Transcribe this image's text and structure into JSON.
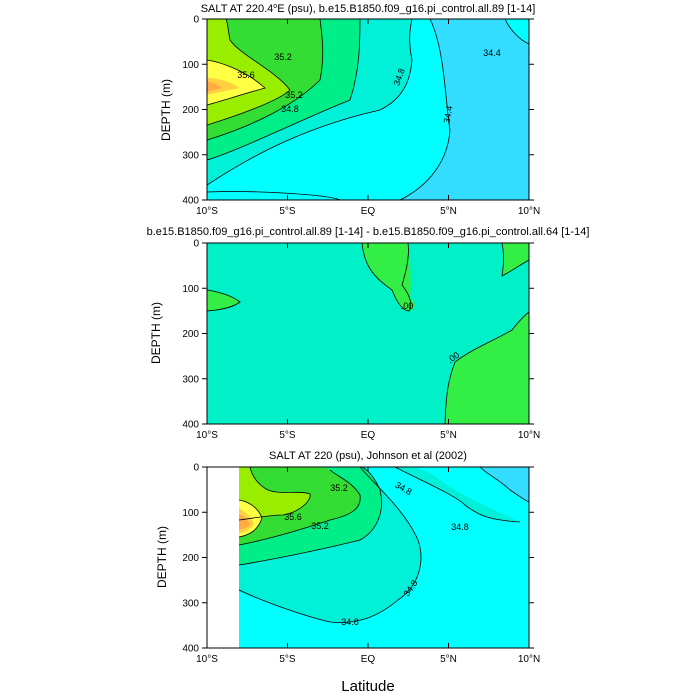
{
  "figure": {
    "xlabel": "Latitude",
    "ylabel": "DEPTH (m)"
  },
  "colors": {
    "c34_4": "#33ddff",
    "c34_6": "#00ffff",
    "c34_8": "#00f0d8",
    "c35_0": "#00ee88",
    "c35_2": "#33dd33",
    "c35_4": "#99ee00",
    "c35_6": "#ffff44",
    "c35_8": "#ffd040",
    "c36_0": "#ffaa44",
    "diff_bg": "#00f0c8",
    "diff_pos": "#33ee44",
    "line": "#000000"
  },
  "chart_data": [
    {
      "type": "contour",
      "title_main": "SALT AT 220.4",
      "title_sup": "o",
      "title_rest": "E (psu), b.e15.B1850.f09_g16.pi_control.all.89 [1-14]",
      "xlabel": "",
      "ylabel": "DEPTH (m)",
      "xlim": [
        -10,
        10
      ],
      "ylim": [
        400,
        0
      ],
      "xticks": [
        -10,
        -5,
        0,
        5,
        10
      ],
      "xtick_labels": [
        "10°S",
        "5°S",
        "EQ",
        "5°N",
        "10°N"
      ],
      "yticks": [
        0,
        100,
        200,
        300,
        400
      ],
      "ytick_labels": [
        "0",
        "100",
        "200",
        "300",
        "400"
      ],
      "contour_labels": [
        "35.2",
        "35.6",
        "35.2",
        "34.8",
        "34.8",
        "34.4",
        "34.4"
      ]
    },
    {
      "type": "contour",
      "title": "b.e15.B1850.f09_g16.pi_control.all.89 [1-14] - b.e15.B1850.f09_g16.pi_control.all.64 [1-14]",
      "xlabel": "",
      "ylabel": "DEPTH (m)",
      "xlim": [
        -10,
        10
      ],
      "ylim": [
        400,
        0
      ],
      "xticks": [
        -10,
        -5,
        0,
        5,
        10
      ],
      "xtick_labels": [
        "10°S",
        "5°S",
        "EQ",
        "5°N",
        "10°N"
      ],
      "yticks": [
        0,
        100,
        200,
        300,
        400
      ],
      "ytick_labels": [
        "0",
        "100",
        "200",
        "300",
        "400"
      ],
      "contour_labels": [
        ".00",
        ".00"
      ]
    },
    {
      "type": "contour",
      "title": "SALT AT 220 (psu), Johnson et al (2002)",
      "xlabel": "Latitude",
      "ylabel": "DEPTH (m)",
      "xlim": [
        -10,
        10
      ],
      "ylim": [
        400,
        0
      ],
      "xticks": [
        -10,
        -5,
        0,
        5,
        10
      ],
      "xtick_labels": [
        "10°S",
        "5°S",
        "EQ",
        "5°N",
        "10°N"
      ],
      "yticks": [
        0,
        100,
        200,
        300,
        400
      ],
      "ytick_labels": [
        "0",
        "100",
        "200",
        "300",
        "400"
      ],
      "contour_labels": [
        "35.2",
        "35.6",
        "35.2",
        "34.8",
        "34.8",
        "34.8",
        "34.8"
      ]
    }
  ]
}
